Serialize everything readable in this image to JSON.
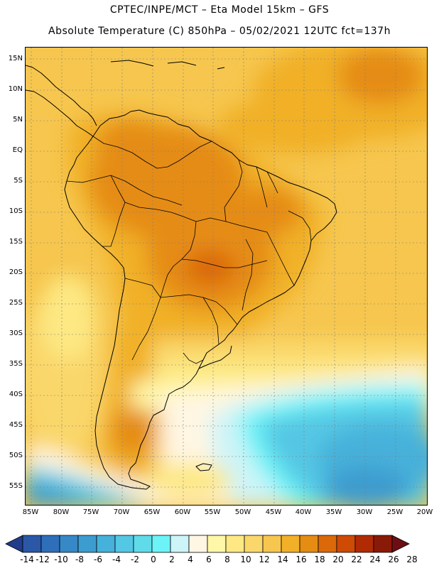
{
  "header": {
    "line1": "CPTEC/INPE/MCT –  Eta Model 15km – GFS",
    "line2": "Absolute Temperature (C) 850hPa – 05/02/2021 12UTC fct=137h"
  },
  "map": {
    "lat_labels": [
      "15N",
      "10N",
      "5N",
      "EQ",
      "5S",
      "10S",
      "15S",
      "20S",
      "25S",
      "30S",
      "35S",
      "40S",
      "45S",
      "50S",
      "55S"
    ],
    "lon_labels": [
      "85W",
      "80W",
      "75W",
      "70W",
      "65W",
      "60W",
      "55W",
      "50W",
      "45W",
      "40W",
      "35W",
      "30W",
      "25W",
      "20W"
    ]
  },
  "colorbar": {
    "labels": [
      "-14",
      "-12",
      "-10",
      "-8",
      "-6",
      "-4",
      "-2",
      "0",
      "2",
      "4",
      "6",
      "8",
      "10",
      "12",
      "14",
      "16",
      "18",
      "20",
      "22",
      "24",
      "26",
      "28"
    ],
    "colors": [
      "#203c8c",
      "#2a58a6",
      "#2f6fb9",
      "#3688c6",
      "#3c9ccf",
      "#46b1da",
      "#54c7e4",
      "#5fdbea",
      "#6cf3f7",
      "#cdf4f8",
      "#fff6e3",
      "#fff7a8",
      "#fde883",
      "#fad76b",
      "#f6c64e",
      "#f1b028",
      "#e58c13",
      "#db6909",
      "#ce4a05",
      "#b02b04",
      "#8a1a08",
      "#6e0e14"
    ]
  }
}
